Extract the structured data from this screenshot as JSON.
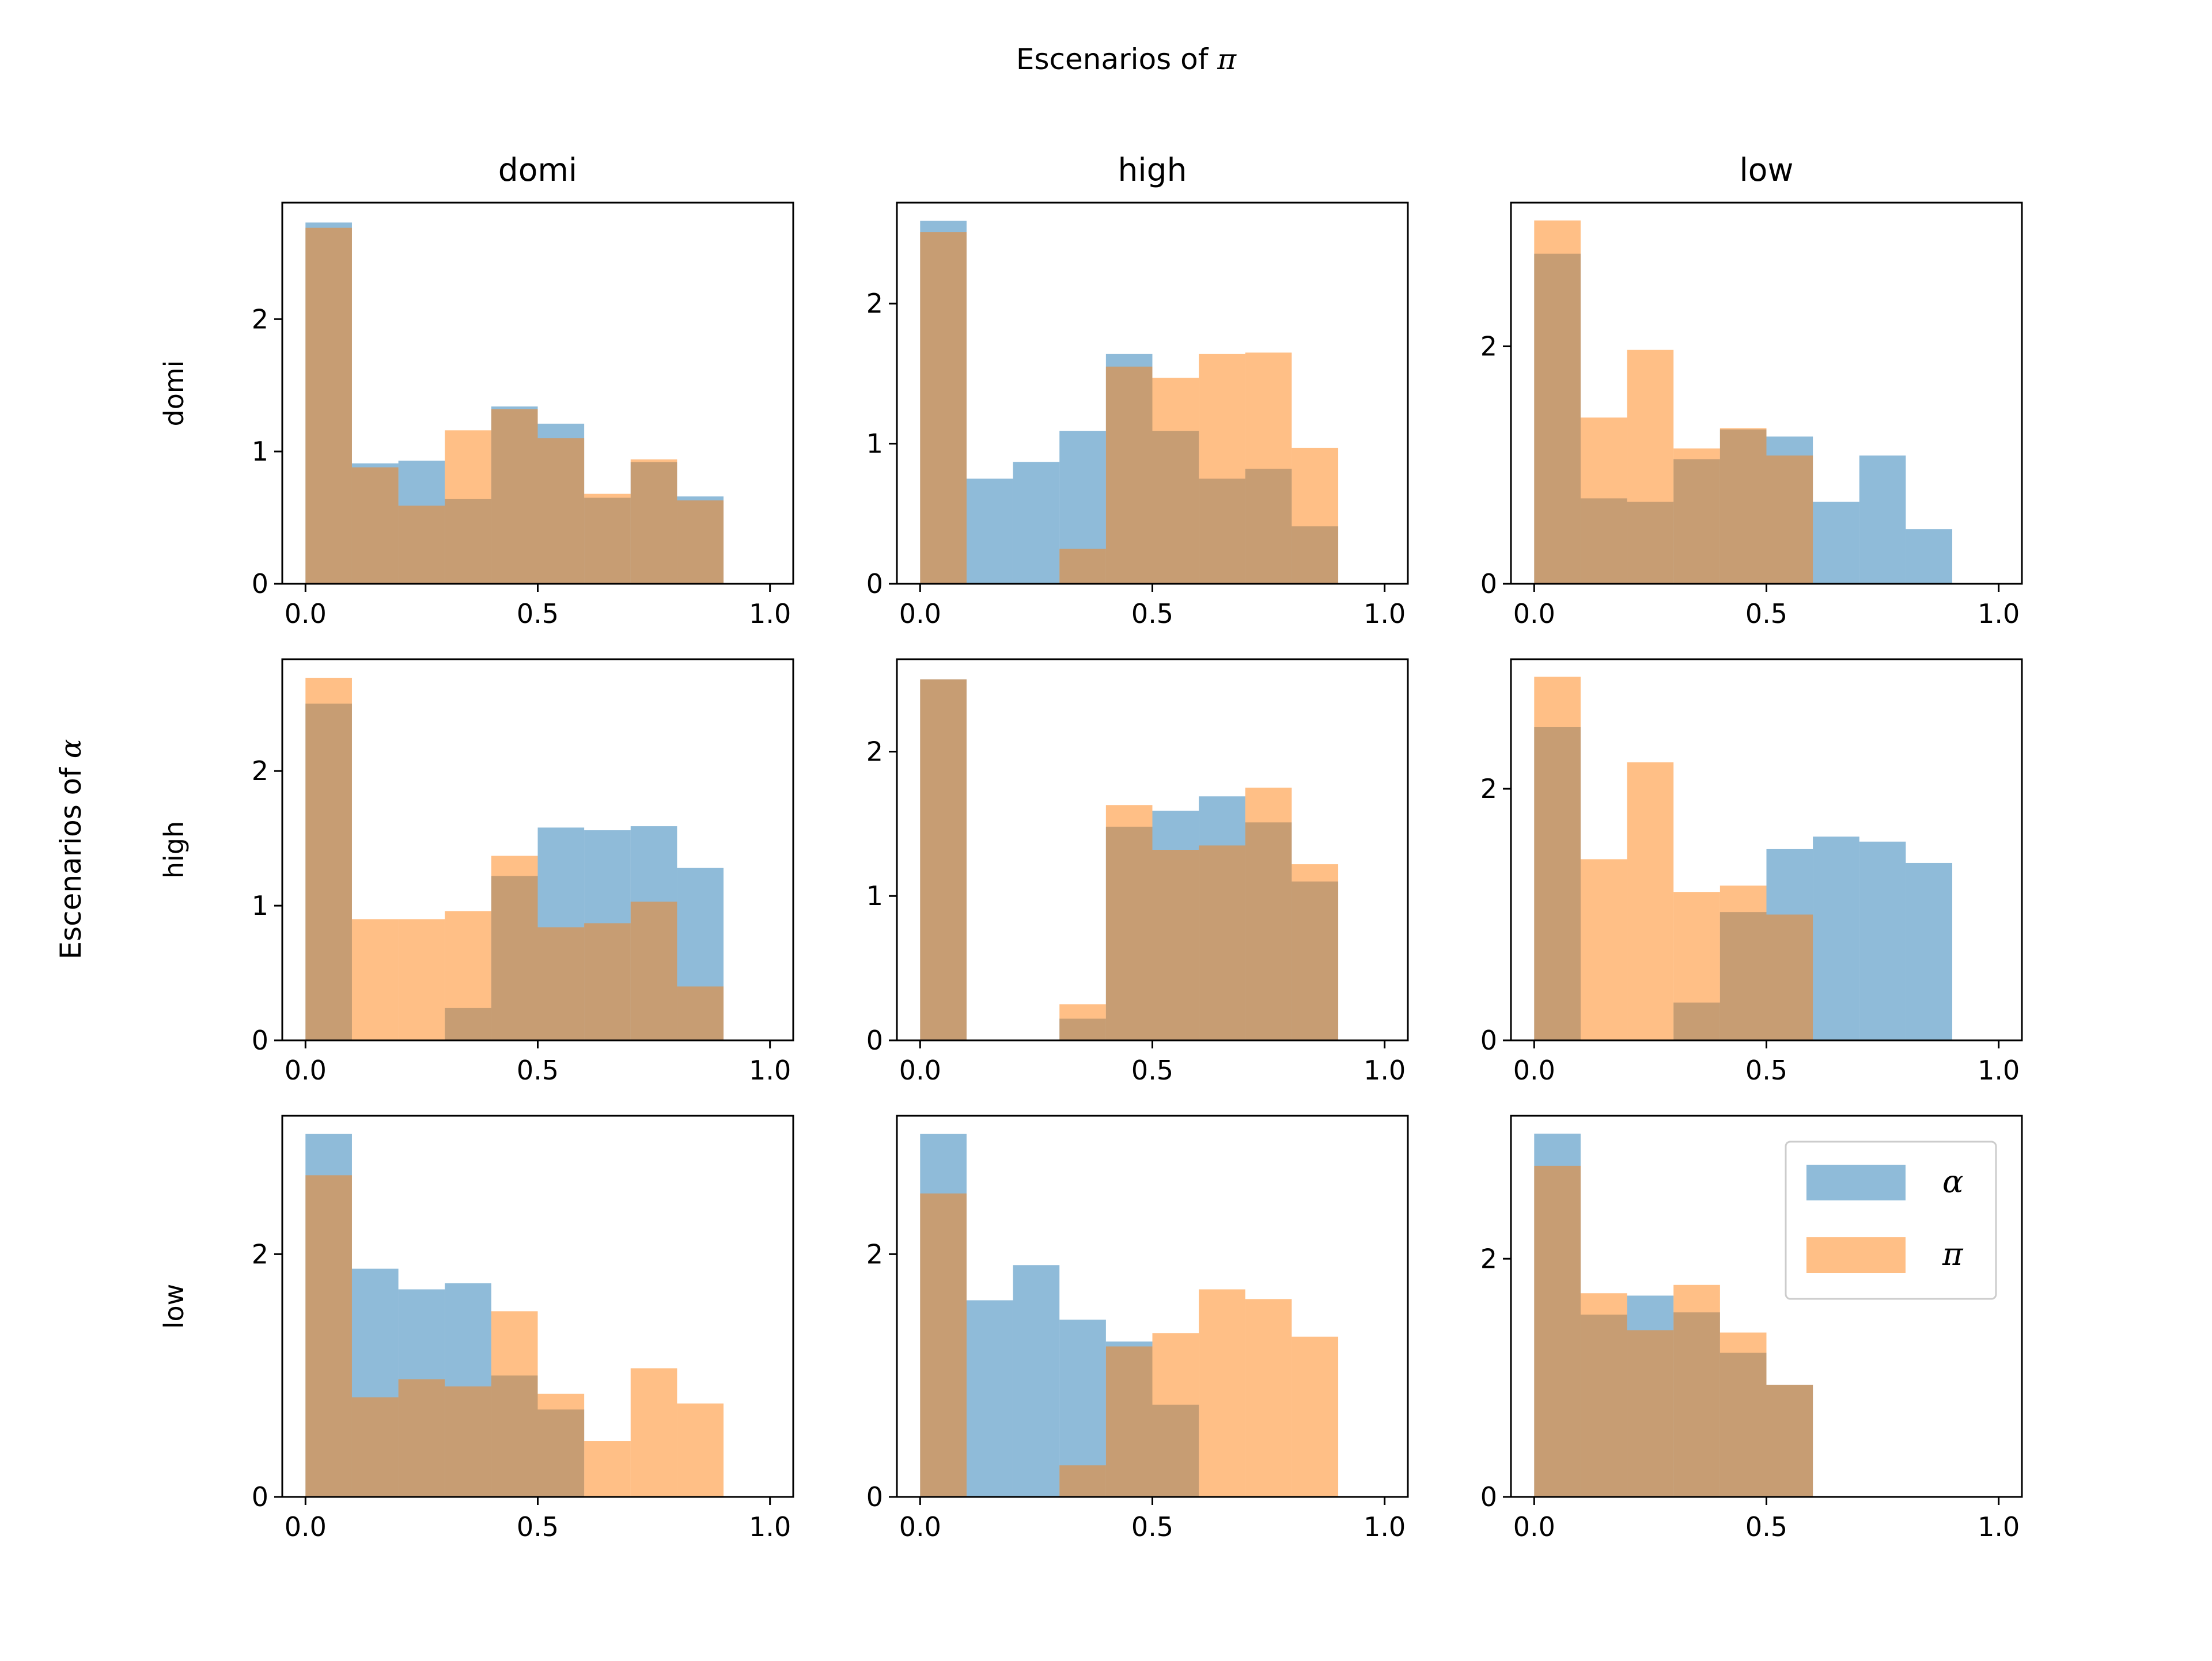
{
  "figure": {
    "suptitle_prefix": "Escenarios of ",
    "suptitle_symbol": "π",
    "ylabel_prefix": "Escenarios of ",
    "ylabel_symbol": "α"
  },
  "column_titles": [
    "domi",
    "high",
    "low"
  ],
  "row_labels": [
    "domi",
    "high",
    "low"
  ],
  "legend": {
    "panel_index": 8,
    "entries": [
      {
        "label": "α",
        "color": "#1f77b4",
        "opacity": 0.5
      },
      {
        "label": "π",
        "color": "#ff7f0e",
        "opacity": 0.5
      }
    ]
  },
  "colors": {
    "alpha": "#1f77b4",
    "pi": "#ff7f0e",
    "opacity": 0.5
  },
  "chart_data": [
    {
      "type": "bar",
      "row": "domi",
      "col": "domi",
      "bin_edges": [
        0,
        0.1,
        0.2,
        0.3,
        0.4,
        0.5,
        0.6,
        0.7,
        0.8,
        0.9
      ],
      "xlim": [
        -0.05,
        1.05
      ],
      "ylim": [
        0,
        2.88
      ],
      "xticks": [
        "0.0",
        "0.5",
        "1.0"
      ],
      "yticks": [
        "0",
        "1",
        "2"
      ],
      "series": [
        {
          "name": "α",
          "values": [
            2.73,
            0.91,
            0.93,
            0.64,
            1.34,
            1.21,
            0.65,
            0.92,
            0.66
          ]
        },
        {
          "name": "π",
          "values": [
            2.69,
            0.88,
            0.59,
            1.16,
            1.32,
            1.1,
            0.68,
            0.94,
            0.63
          ]
        }
      ]
    },
    {
      "type": "bar",
      "row": "domi",
      "col": "high",
      "bin_edges": [
        0,
        0.1,
        0.2,
        0.3,
        0.4,
        0.5,
        0.6,
        0.7,
        0.8,
        0.9
      ],
      "xlim": [
        -0.05,
        1.05
      ],
      "ylim": [
        0,
        2.72
      ],
      "xticks": [
        "0.0",
        "0.5",
        "1.0"
      ],
      "yticks": [
        "0",
        "1",
        "2"
      ],
      "series": [
        {
          "name": "α",
          "values": [
            2.59,
            0.75,
            0.87,
            1.09,
            1.64,
            1.09,
            0.75,
            0.82,
            0.41
          ]
        },
        {
          "name": "π",
          "values": [
            2.51,
            0.0,
            0.0,
            0.25,
            1.55,
            1.47,
            1.64,
            1.65,
            0.97
          ]
        }
      ]
    },
    {
      "type": "bar",
      "row": "domi",
      "col": "low",
      "bin_edges": [
        0,
        0.1,
        0.2,
        0.3,
        0.4,
        0.5,
        0.6,
        0.7,
        0.8,
        0.9
      ],
      "xlim": [
        -0.05,
        1.05
      ],
      "ylim": [
        0,
        3.21
      ],
      "xticks": [
        "0.0",
        "0.5",
        "1.0"
      ],
      "yticks": [
        "0",
        "2"
      ],
      "series": [
        {
          "name": "α",
          "values": [
            2.78,
            0.72,
            0.69,
            1.05,
            1.3,
            1.24,
            0.69,
            1.08,
            0.46
          ]
        },
        {
          "name": "π",
          "values": [
            3.06,
            1.4,
            1.97,
            1.14,
            1.31,
            1.08,
            0.0,
            0.0,
            0.0
          ]
        }
      ]
    },
    {
      "type": "bar",
      "row": "high",
      "col": "domi",
      "bin_edges": [
        0,
        0.1,
        0.2,
        0.3,
        0.4,
        0.5,
        0.6,
        0.7,
        0.8,
        0.9
      ],
      "xlim": [
        -0.05,
        1.05
      ],
      "ylim": [
        0,
        2.83
      ],
      "xticks": [
        "0.0",
        "0.5",
        "1.0"
      ],
      "yticks": [
        "0",
        "1",
        "2"
      ],
      "series": [
        {
          "name": "α",
          "values": [
            2.5,
            0.0,
            0.0,
            0.24,
            1.22,
            1.58,
            1.56,
            1.59,
            1.28
          ]
        },
        {
          "name": "π",
          "values": [
            2.69,
            0.9,
            0.9,
            0.96,
            1.37,
            0.84,
            0.87,
            1.03,
            0.4
          ]
        }
      ]
    },
    {
      "type": "bar",
      "row": "high",
      "col": "high",
      "bin_edges": [
        0,
        0.1,
        0.2,
        0.3,
        0.4,
        0.5,
        0.6,
        0.7,
        0.8,
        0.9
      ],
      "xlim": [
        -0.05,
        1.05
      ],
      "ylim": [
        0,
        2.64
      ],
      "xticks": [
        "0.0",
        "0.5",
        "1.0"
      ],
      "yticks": [
        "0",
        "1",
        "2"
      ],
      "series": [
        {
          "name": "α",
          "values": [
            2.5,
            0.0,
            0.0,
            0.15,
            1.48,
            1.59,
            1.69,
            1.51,
            1.1
          ]
        },
        {
          "name": "π",
          "values": [
            2.5,
            0.0,
            0.0,
            0.25,
            1.63,
            1.32,
            1.35,
            1.75,
            1.22
          ]
        }
      ]
    },
    {
      "type": "bar",
      "row": "high",
      "col": "low",
      "bin_edges": [
        0,
        0.1,
        0.2,
        0.3,
        0.4,
        0.5,
        0.6,
        0.7,
        0.8,
        0.9
      ],
      "xlim": [
        -0.05,
        1.05
      ],
      "ylim": [
        0,
        3.03
      ],
      "xticks": [
        "0.0",
        "0.5",
        "1.0"
      ],
      "yticks": [
        "0",
        "2"
      ],
      "series": [
        {
          "name": "α",
          "values": [
            2.49,
            0.0,
            0.0,
            0.3,
            1.02,
            1.52,
            1.62,
            1.58,
            1.41
          ]
        },
        {
          "name": "π",
          "values": [
            2.89,
            1.44,
            2.21,
            1.18,
            1.23,
            1.0,
            0.0,
            0.0,
            0.0
          ]
        }
      ]
    },
    {
      "type": "bar",
      "row": "low",
      "col": "domi",
      "bin_edges": [
        0,
        0.1,
        0.2,
        0.3,
        0.4,
        0.5,
        0.6,
        0.7,
        0.8,
        0.9
      ],
      "xlim": [
        -0.05,
        1.05
      ],
      "ylim": [
        0,
        3.14
      ],
      "xticks": [
        "0.0",
        "0.5",
        "1.0"
      ],
      "yticks": [
        "0",
        "2"
      ],
      "series": [
        {
          "name": "α",
          "values": [
            2.99,
            1.88,
            1.71,
            1.76,
            1.0,
            0.72,
            0.0,
            0.0,
            0.0
          ]
        },
        {
          "name": "π",
          "values": [
            2.65,
            0.82,
            0.97,
            0.91,
            1.53,
            0.85,
            0.46,
            1.06,
            0.77
          ]
        }
      ]
    },
    {
      "type": "bar",
      "row": "low",
      "col": "high",
      "bin_edges": [
        0,
        0.1,
        0.2,
        0.3,
        0.4,
        0.5,
        0.6,
        0.7,
        0.8,
        0.9
      ],
      "xlim": [
        -0.05,
        1.05
      ],
      "ylim": [
        0,
        3.14
      ],
      "xticks": [
        "0.0",
        "0.5",
        "1.0"
      ],
      "yticks": [
        "0",
        "2"
      ],
      "series": [
        {
          "name": "α",
          "values": [
            2.99,
            1.62,
            1.91,
            1.46,
            1.28,
            0.76,
            0.0,
            0.0,
            0.0
          ]
        },
        {
          "name": "π",
          "values": [
            2.5,
            0.0,
            0.0,
            0.26,
            1.24,
            1.35,
            1.71,
            1.63,
            1.32
          ]
        }
      ]
    },
    {
      "type": "bar",
      "row": "low",
      "col": "low",
      "bin_edges": [
        0,
        0.1,
        0.2,
        0.3,
        0.4,
        0.5,
        0.6,
        0.7,
        0.8,
        0.9
      ],
      "xlim": [
        -0.05,
        1.05
      ],
      "ylim": [
        0,
        3.2
      ],
      "xticks": [
        "0.0",
        "0.5",
        "1.0"
      ],
      "yticks": [
        "0",
        "2"
      ],
      "series": [
        {
          "name": "α",
          "values": [
            3.05,
            1.53,
            1.69,
            1.55,
            1.21,
            0.94,
            0.0,
            0.0,
            0.0
          ]
        },
        {
          "name": "π",
          "values": [
            2.78,
            1.71,
            1.4,
            1.78,
            1.38,
            0.94,
            0.0,
            0.0,
            0.0
          ]
        }
      ]
    }
  ]
}
